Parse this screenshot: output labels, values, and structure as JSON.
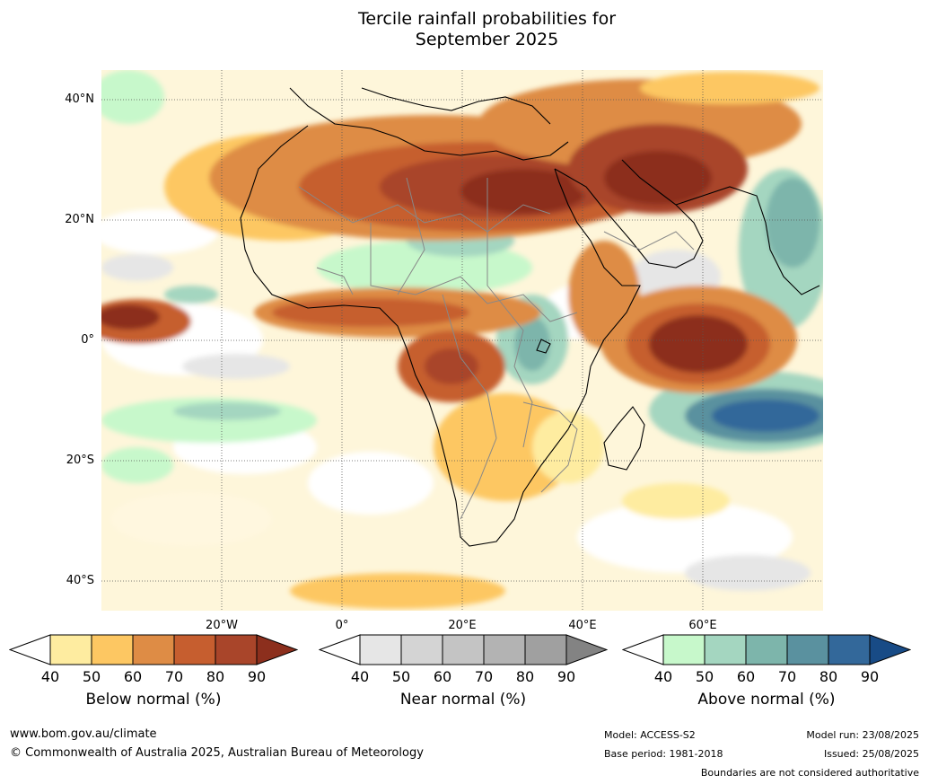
{
  "title_line1": "Tercile rainfall probabilities for",
  "title_line2": "September 2025",
  "lat_labels": [
    "40°N",
    "20°N",
    "0°",
    "20°S",
    "40°S"
  ],
  "lon_labels": [
    "20°W",
    "0°",
    "20°E",
    "40°E",
    "60°E"
  ],
  "colorbars": [
    {
      "title": "Below normal (%)",
      "ticks": [
        "40",
        "50",
        "60",
        "70",
        "80",
        "90"
      ],
      "colors": [
        "#ffffff",
        "#feeca0",
        "#fdc762",
        "#de8c45",
        "#c65e2f",
        "#a9452a",
        "#8c2f1d"
      ]
    },
    {
      "title": "Near normal (%)",
      "ticks": [
        "40",
        "50",
        "60",
        "70",
        "80",
        "90"
      ],
      "colors": [
        "#ffffff",
        "#e6e6e6",
        "#d4d4d4",
        "#c4c4c4",
        "#b3b3b3",
        "#a0a0a0",
        "#838383"
      ]
    },
    {
      "title": "Above normal (%)",
      "ticks": [
        "40",
        "50",
        "60",
        "70",
        "80",
        "90"
      ],
      "colors": [
        "#ffffff",
        "#c7f8cb",
        "#a4d6c0",
        "#7db5ab",
        "#5a919f",
        "#33689a",
        "#184b86"
      ]
    }
  ],
  "footer": {
    "url": "www.bom.gov.au/climate",
    "copyright": "© Commonwealth of Australia 2025, Australian Bureau of Meteorology",
    "model": "Model: ACCESS-S2",
    "base_period": "Base period: 1981-2018",
    "model_run": "Model run: 23/08/2025",
    "issued": "Issued: 25/08/2025",
    "disclaimer": "Boundaries are not considered authoritative"
  }
}
